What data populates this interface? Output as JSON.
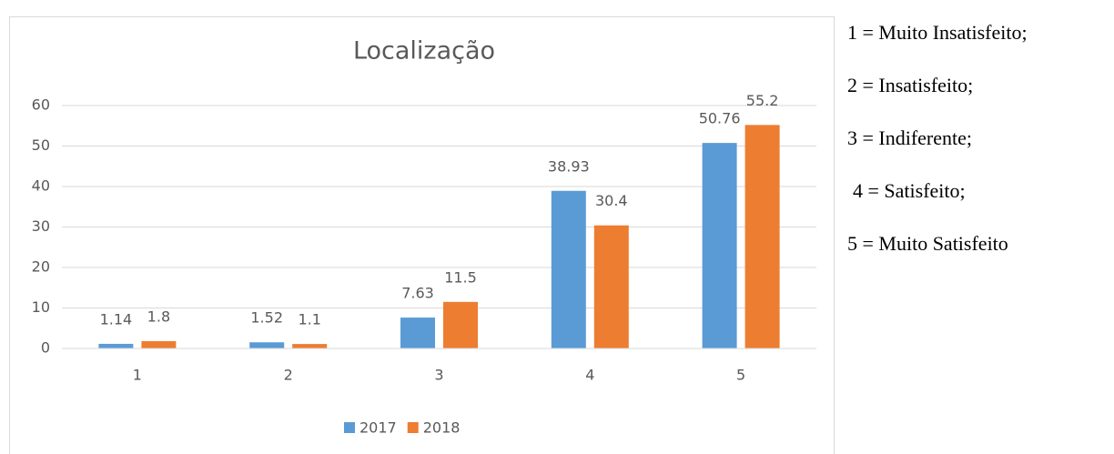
{
  "chart_data": {
    "type": "bar",
    "title": "Localização",
    "categories": [
      "1",
      "2",
      "3",
      "4",
      "5"
    ],
    "series": [
      {
        "name": "2017",
        "color": "#5b9bd5",
        "values": [
          1.14,
          1.52,
          7.63,
          38.93,
          50.76
        ]
      },
      {
        "name": "2018",
        "color": "#ed7d31",
        "values": [
          1.8,
          1.1,
          11.5,
          30.4,
          55.2
        ]
      }
    ],
    "ylim": [
      0,
      60
    ],
    "yticks": [
      0,
      10,
      20,
      30,
      40,
      50,
      60
    ],
    "grid": true,
    "legend": "bottom"
  },
  "notes": [
    "1 = Muito Insatisfeito;",
    "2 = Insatisfeito;",
    "3 = Indiferente;",
    "4 = Satisfeito;",
    "5 = Muito Satisfeito"
  ]
}
